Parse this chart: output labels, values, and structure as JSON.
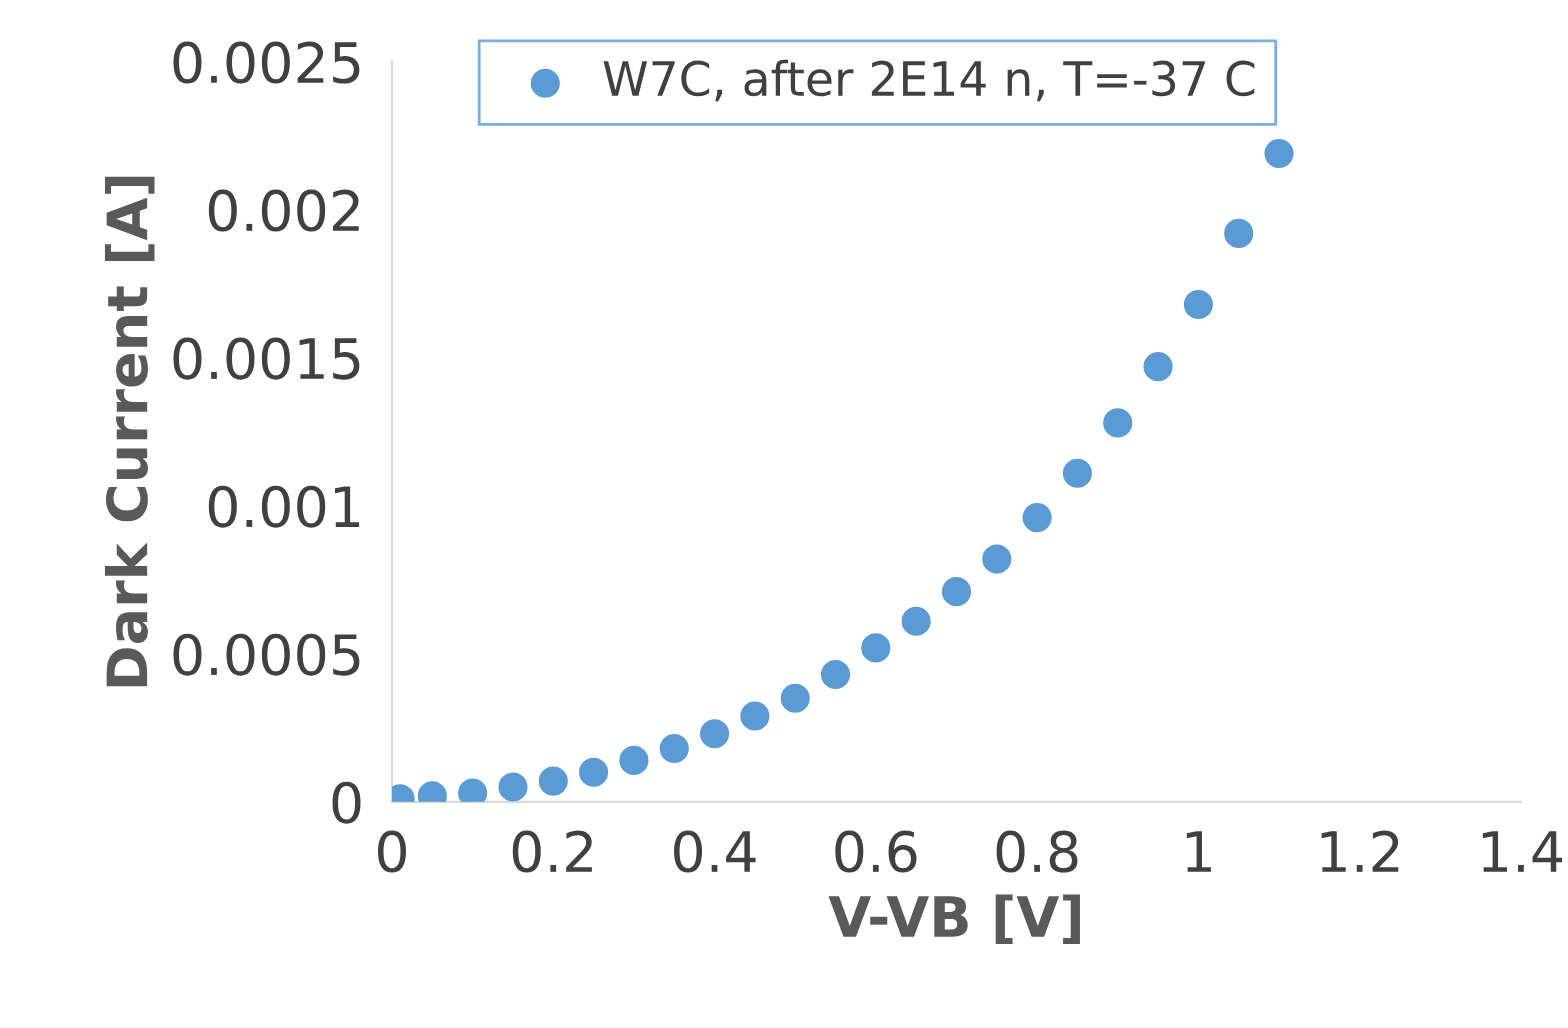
{
  "chart_data": {
    "type": "scatter",
    "xlabel": "V-VB [V]",
    "ylabel": "Dark Current [A]",
    "xlim": [
      0,
      1.4
    ],
    "xticks": [
      0,
      0.2,
      0.4,
      0.6,
      0.8,
      1,
      1.2,
      1.4
    ],
    "ylim": [
      0,
      0.0025
    ],
    "yticks": [
      0,
      0.0005,
      0.001,
      0.0015,
      0.002,
      0.0025
    ],
    "grid": false,
    "legend": "top",
    "marker": "circle",
    "series": [
      {
        "name": "W7C, after 2E14 n, T=-37 C",
        "color": "#5b9bd5",
        "x": [
          0.01,
          0.05,
          0.1,
          0.15,
          0.2,
          0.25,
          0.3,
          0.35,
          0.4,
          0.45,
          0.5,
          0.55,
          0.6,
          0.65,
          0.7,
          0.75,
          0.8,
          0.85,
          0.9,
          0.95,
          1.0,
          1.05,
          1.1
        ],
        "values": [
          1e-05,
          2e-05,
          3e-05,
          5e-05,
          7e-05,
          0.0001,
          0.00014,
          0.00018,
          0.00023,
          0.00029,
          0.00035,
          0.00043,
          0.00052,
          0.00061,
          0.00071,
          0.00082,
          0.00096,
          0.00111,
          0.00128,
          0.00147,
          0.00168,
          0.00192,
          0.00219
        ]
      }
    ]
  }
}
